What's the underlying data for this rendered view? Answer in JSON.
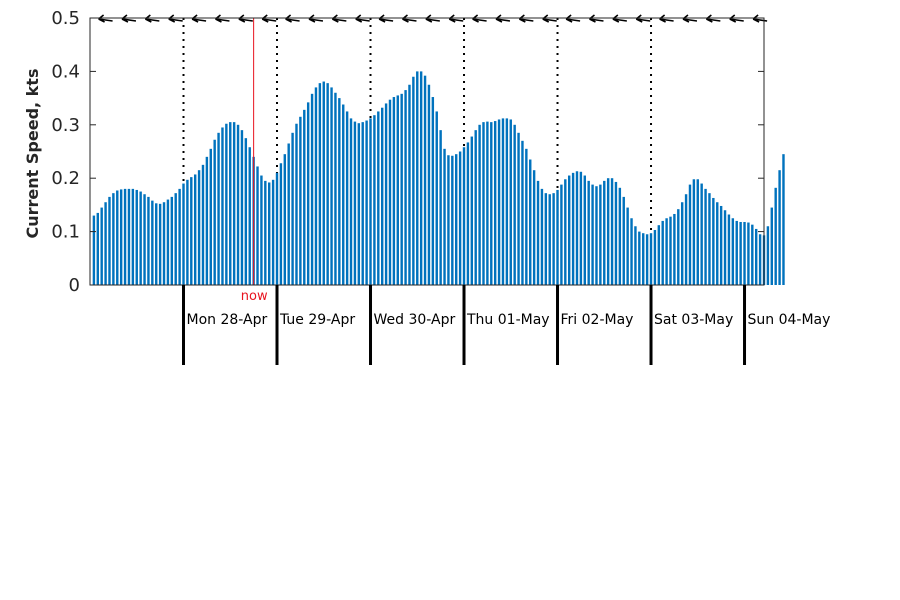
{
  "chart_data": {
    "type": "bar",
    "ylabel": "Current Speed, kts",
    "ylim": [
      0,
      0.5
    ],
    "yticks": [
      "0",
      "0.1",
      "0.2",
      "0.3",
      "0.4",
      "0.5"
    ],
    "bar_color": "#0072BD",
    "now_color": "#e8131f",
    "now_label": "now",
    "now_hour": 18,
    "grid": "dotted vertical lines at day boundaries",
    "days": [
      "Mon 28-Apr",
      "Tue 29-Apr",
      "Wed 30-Apr",
      "Thu 01-May",
      "Fri 02-May",
      "Sat 03-May",
      "Sun 04-May"
    ],
    "direction_arrows": "direction indicators along top edge, pointing mostly west",
    "x_hours_from_midnight_sun_27_apr": [
      1,
      172
    ],
    "values": [
      0.13,
      0.135,
      0.145,
      0.155,
      0.165,
      0.172,
      0.177,
      0.179,
      0.18,
      0.18,
      0.18,
      0.178,
      0.175,
      0.17,
      0.165,
      0.158,
      0.153,
      0.152,
      0.155,
      0.16,
      0.165,
      0.172,
      0.18,
      0.19,
      0.197,
      0.202,
      0.207,
      0.215,
      0.225,
      0.24,
      0.255,
      0.272,
      0.285,
      0.295,
      0.302,
      0.305,
      0.305,
      0.3,
      0.29,
      0.275,
      0.258,
      0.24,
      0.222,
      0.205,
      0.195,
      0.192,
      0.197,
      0.21,
      0.228,
      0.245,
      0.265,
      0.285,
      0.302,
      0.315,
      0.328,
      0.342,
      0.358,
      0.37,
      0.378,
      0.381,
      0.378,
      0.37,
      0.36,
      0.35,
      0.338,
      0.325,
      0.312,
      0.306,
      0.303,
      0.305,
      0.308,
      0.312,
      0.318,
      0.325,
      0.332,
      0.34,
      0.347,
      0.352,
      0.355,
      0.358,
      0.365,
      0.375,
      0.39,
      0.4,
      0.4,
      0.392,
      0.375,
      0.352,
      0.325,
      0.29,
      0.255,
      0.243,
      0.242,
      0.245,
      0.25,
      0.258,
      0.267,
      0.278,
      0.29,
      0.3,
      0.305,
      0.306,
      0.305,
      0.307,
      0.31,
      0.312,
      0.312,
      0.31,
      0.3,
      0.285,
      0.27,
      0.255,
      0.235,
      0.215,
      0.195,
      0.18,
      0.172,
      0.17,
      0.172,
      0.178,
      0.188,
      0.198,
      0.205,
      0.21,
      0.213,
      0.212,
      0.205,
      0.195,
      0.188,
      0.185,
      0.188,
      0.195,
      0.2,
      0.2,
      0.193,
      0.182,
      0.165,
      0.145,
      0.125,
      0.11,
      0.1,
      0.097,
      0.095,
      0.097,
      0.103,
      0.112,
      0.12,
      0.125,
      0.128,
      0.133,
      0.142,
      0.155,
      0.17,
      0.188,
      0.198,
      0.198,
      0.19,
      0.18,
      0.172,
      0.163,
      0.155,
      0.148,
      0.14,
      0.132,
      0.125,
      0.12,
      0.118,
      0.118,
      0.117,
      0.113,
      0.105,
      0.095,
      0.093,
      0.11,
      0.145,
      0.182,
      0.215,
      0.245
    ]
  }
}
